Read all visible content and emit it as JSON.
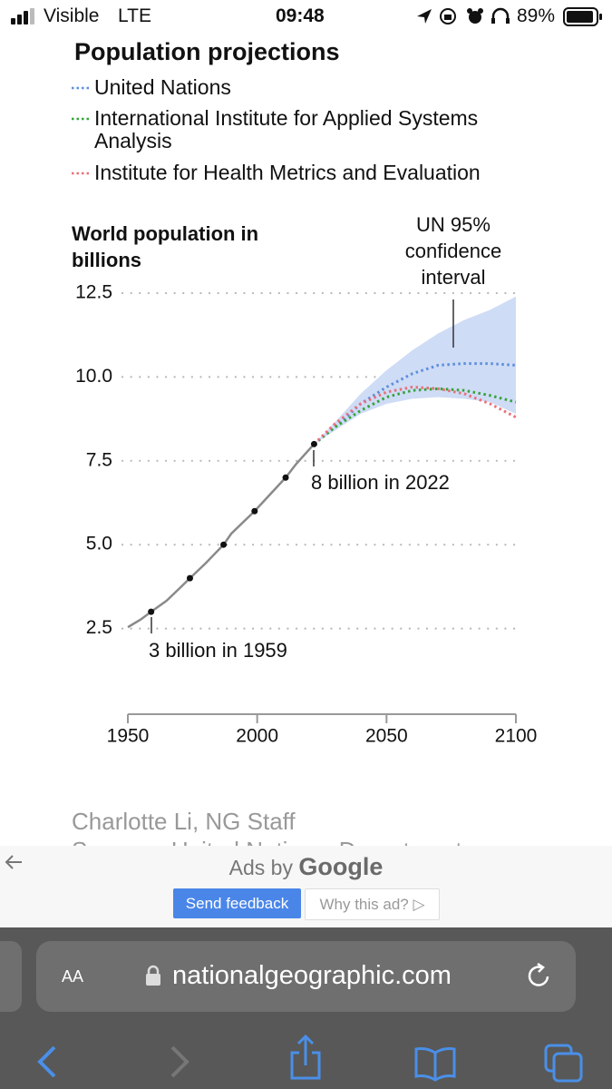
{
  "status_bar": {
    "carrier": "Visible",
    "network": "LTE",
    "time": "09:48",
    "battery": "89%"
  },
  "chart_data": {
    "type": "line",
    "legend_title": "Population projections",
    "y_axis_title": "World population in billions",
    "xlim": [
      1950,
      2100
    ],
    "xticks": [
      1950,
      2000,
      2050,
      2100
    ],
    "ylim": [
      0,
      12.5
    ],
    "yticks": [
      2.5,
      {
        "value": 5,
        "label": "5.0"
      },
      7.5,
      {
        "value": 10,
        "label": "10.0"
      },
      12.5
    ],
    "grid": true,
    "history": {
      "color": "#8a8a8a",
      "x": [
        1950,
        1955,
        1959,
        1965,
        1970,
        1974,
        1980,
        1987,
        1990,
        1999,
        2005,
        2011,
        2015,
        2022
      ],
      "values": [
        2.54,
        2.77,
        3.0,
        3.33,
        3.7,
        4.0,
        4.44,
        5.0,
        5.33,
        6.0,
        6.5,
        7.0,
        7.4,
        8.0
      ]
    },
    "milestones": {
      "color": "#111111",
      "x": [
        1959,
        1974,
        1987,
        1999,
        2011,
        2022
      ],
      "values": [
        3,
        4,
        5,
        6,
        7,
        8
      ]
    },
    "confidence_interval": {
      "color": "#cfdcf6",
      "x": [
        2022,
        2030,
        2040,
        2050,
        2060,
        2070,
        2080,
        2090,
        2100
      ],
      "lower": [
        8.0,
        8.4,
        8.9,
        9.2,
        9.35,
        9.4,
        9.35,
        9.25,
        8.9
      ],
      "upper": [
        8.0,
        8.65,
        9.5,
        10.2,
        10.8,
        11.3,
        11.7,
        12.0,
        12.4
      ]
    },
    "x": [
      2022,
      2030,
      2040,
      2050,
      2060,
      2070,
      2080,
      2090,
      2100
    ],
    "series": [
      {
        "name": "United Nations",
        "color": "#5b8fdc",
        "values": [
          8.0,
          8.5,
          9.2,
          9.7,
          10.1,
          10.35,
          10.4,
          10.4,
          10.35
        ]
      },
      {
        "name": "International Institute for Applied Systems Analysis",
        "color": "#35a33a",
        "values": [
          8.0,
          8.5,
          9.0,
          9.4,
          9.6,
          9.65,
          9.6,
          9.45,
          9.25
        ]
      },
      {
        "name": "Institute for Health Metrics and Evaluation",
        "color": "#e8707a",
        "values": [
          8.0,
          8.6,
          9.2,
          9.55,
          9.7,
          9.65,
          9.5,
          9.2,
          8.8
        ]
      }
    ],
    "annotations": [
      {
        "text": "UN 95% confidence interval"
      },
      {
        "text": "8 billion in 2022"
      },
      {
        "text": "3 billion in 1959"
      }
    ]
  },
  "credit": "Charlotte Li, NG Staff",
  "sources": "Sources: United Nations, Department",
  "ads": {
    "label": "Ads by",
    "brand": "Google",
    "feedback": "Send feedback",
    "why": "Why this ad?"
  },
  "browser": {
    "text_size": "AA",
    "url": "nationalgeographic.com"
  }
}
